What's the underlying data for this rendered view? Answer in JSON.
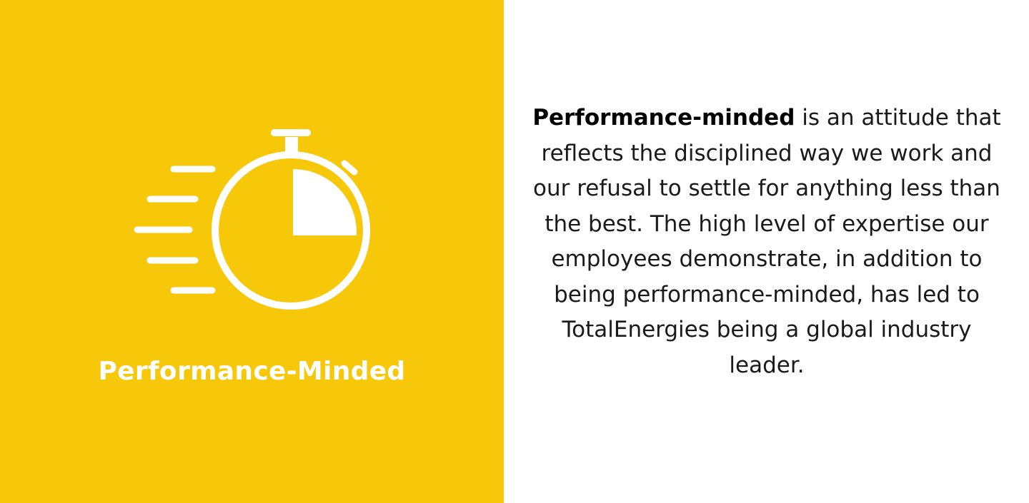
{
  "colors": {
    "panel_background": "#f7c80a",
    "icon_and_title": "#ffffff",
    "body_text": "#1a1a1a"
  },
  "left_panel": {
    "icon": "stopwatch-icon",
    "title": "Performance-Minded"
  },
  "right_panel": {
    "description_bold": "Performance-minded",
    "description_rest": " is an attitude that reflects the disciplined way we work and our refusal to settle for anything less than the best. The high level of expertise our employees demonstrate, in addition to being performance-minded, has led to TotalEnergies being a global industry leader."
  }
}
